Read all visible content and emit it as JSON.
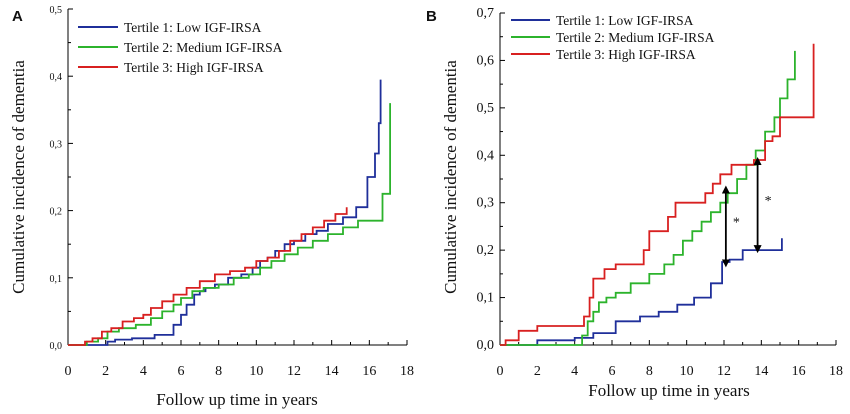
{
  "chart_data": [
    {
      "panel_label": "A",
      "type": "line",
      "step": true,
      "xlabel": "Follow up time in years",
      "ylabel": "Cumulative incidence of dementia",
      "xlim": [
        0,
        18
      ],
      "ylim": [
        0,
        0.5
      ],
      "x_ticks": [
        0,
        2,
        4,
        6,
        8,
        10,
        12,
        14,
        16,
        18
      ],
      "x_tick_labels": [
        "0",
        "2",
        "4",
        "6",
        "8",
        "10",
        "12",
        "14",
        "16",
        "18"
      ],
      "y_ticks": [
        0,
        0.1,
        0.2,
        0.3,
        0.4,
        0.5
      ],
      "y_tick_labels": [
        "0,0",
        "0,1",
        "0,2",
        "0,3",
        "0,4",
        "0,5"
      ],
      "legend_position": "top-left",
      "series": [
        {
          "name": "Tertile 1: Low IGF-IRSA",
          "color": "#1f2f9a",
          "x": [
            0,
            2.1,
            2.5,
            3.4,
            4.6,
            5.6,
            6.0,
            6.3,
            6.7,
            7.0,
            7.3,
            7.8,
            8.5,
            9.2,
            9.8,
            10.2,
            10.6,
            11.0,
            11.5,
            12.0,
            12.6,
            13.2,
            13.8,
            14.6,
            15.3,
            15.9,
            16.3,
            16.5,
            16.6
          ],
          "y": [
            0,
            0.005,
            0.008,
            0.01,
            0.015,
            0.03,
            0.045,
            0.06,
            0.075,
            0.08,
            0.085,
            0.09,
            0.1,
            0.105,
            0.115,
            0.125,
            0.13,
            0.14,
            0.15,
            0.155,
            0.165,
            0.17,
            0.18,
            0.19,
            0.205,
            0.25,
            0.285,
            0.33,
            0.395
          ]
        },
        {
          "name": "Tertile 2: Medium IGF-IRSA",
          "color": "#2cb32c",
          "x": [
            0,
            1.0,
            1.6,
            2.1,
            2.7,
            3.6,
            4.4,
            5.0,
            5.6,
            6.0,
            6.6,
            7.2,
            8.0,
            8.8,
            9.6,
            10.2,
            10.8,
            11.5,
            12.2,
            13.0,
            13.8,
            14.6,
            15.4,
            16.2,
            16.7,
            17.1
          ],
          "y": [
            0,
            0.005,
            0.01,
            0.02,
            0.025,
            0.03,
            0.04,
            0.05,
            0.06,
            0.07,
            0.08,
            0.085,
            0.09,
            0.1,
            0.105,
            0.115,
            0.125,
            0.135,
            0.145,
            0.155,
            0.165,
            0.175,
            0.185,
            0.185,
            0.225,
            0.36
          ]
        },
        {
          "name": "Tertile 3: High IGF-IRSA",
          "color": "#d82020",
          "x": [
            0,
            0.9,
            1.3,
            1.8,
            2.3,
            2.9,
            3.5,
            4.0,
            4.4,
            5.0,
            5.6,
            6.3,
            7.0,
            7.8,
            8.6,
            9.4,
            10.0,
            10.6,
            11.2,
            11.8,
            12.4,
            13.0,
            13.6,
            14.2,
            14.8
          ],
          "y": [
            0,
            0.005,
            0.01,
            0.02,
            0.025,
            0.035,
            0.04,
            0.045,
            0.055,
            0.065,
            0.075,
            0.085,
            0.095,
            0.105,
            0.11,
            0.115,
            0.125,
            0.13,
            0.14,
            0.155,
            0.165,
            0.175,
            0.185,
            0.195,
            0.205
          ]
        }
      ]
    },
    {
      "panel_label": "B",
      "type": "line",
      "step": true,
      "xlabel": "Follow up time in years",
      "ylabel": "Cumulative incidence of dementia",
      "xlim": [
        0,
        18
      ],
      "ylim": [
        0,
        0.7
      ],
      "x_ticks": [
        0,
        2,
        4,
        6,
        8,
        10,
        12,
        14,
        16,
        18
      ],
      "x_tick_labels": [
        "0",
        "2",
        "4",
        "6",
        "8",
        "10",
        "12",
        "14",
        "16",
        "18"
      ],
      "y_ticks": [
        0,
        0.1,
        0.2,
        0.3,
        0.4,
        0.5,
        0.6,
        0.7
      ],
      "y_tick_labels": [
        "0,0",
        "0,1",
        "0,2",
        "0,3",
        "0,4",
        "0,5",
        "0,6",
        "0,7"
      ],
      "legend_position": "top-left",
      "series": [
        {
          "name": "Tertile 1: Low IGF-IRSA",
          "color": "#1f2f9a",
          "x": [
            0,
            2.0,
            4.0,
            5.0,
            6.2,
            7.5,
            8.5,
            9.5,
            10.4,
            11.3,
            11.9,
            12.3,
            13.0,
            14.0,
            15.1
          ],
          "y": [
            0,
            0.01,
            0.015,
            0.025,
            0.05,
            0.06,
            0.07,
            0.085,
            0.1,
            0.13,
            0.175,
            0.18,
            0.2,
            0.2,
            0.225
          ]
        },
        {
          "name": "Tertile 2: Medium IGF-IRSA",
          "color": "#2cb32c",
          "x": [
            0,
            4.4,
            4.7,
            5.0,
            5.3,
            5.7,
            6.2,
            7.0,
            8.0,
            8.8,
            9.3,
            9.8,
            10.3,
            10.8,
            11.3,
            11.8,
            12.2,
            12.7,
            13.2,
            13.7,
            14.2,
            14.7,
            15.0,
            15.4,
            15.8
          ],
          "y": [
            0,
            0.02,
            0.05,
            0.07,
            0.09,
            0.1,
            0.11,
            0.13,
            0.15,
            0.17,
            0.19,
            0.22,
            0.24,
            0.26,
            0.28,
            0.3,
            0.32,
            0.35,
            0.38,
            0.41,
            0.45,
            0.48,
            0.52,
            0.56,
            0.62
          ]
        },
        {
          "name": "Tertile 3: High IGF-IRSA",
          "color": "#d82020",
          "x": [
            0,
            0.3,
            1.0,
            2.0,
            4.5,
            4.8,
            5.0,
            5.6,
            6.2,
            7.1,
            7.7,
            8.0,
            9.0,
            9.4,
            11.0,
            11.4,
            11.8,
            12.4,
            13.6,
            14.2,
            14.6,
            15.0,
            16.0,
            16.8
          ],
          "y": [
            0,
            0.01,
            0.03,
            0.04,
            0.06,
            0.1,
            0.14,
            0.16,
            0.17,
            0.17,
            0.2,
            0.24,
            0.27,
            0.3,
            0.32,
            0.34,
            0.36,
            0.38,
            0.39,
            0.43,
            0.44,
            0.48,
            0.48,
            0.635
          ]
        }
      ],
      "annotations": [
        {
          "type": "double-arrow",
          "x": 12.1,
          "y_from": 0.17,
          "y_to": 0.33,
          "label": "*"
        },
        {
          "type": "double-arrow",
          "x": 13.8,
          "y_from": 0.2,
          "y_to": 0.39,
          "label": "*"
        }
      ]
    }
  ]
}
